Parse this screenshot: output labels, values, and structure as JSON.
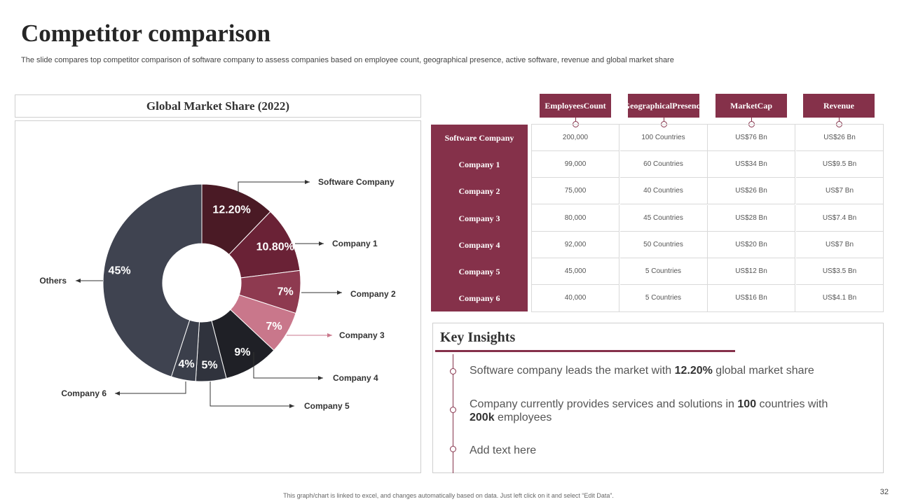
{
  "slide": {
    "title": "Competitor comparison",
    "subtitle": "The slide compares top competitor comparison of software company to assess companies based on employee count, geographical presence, active software, revenue and global market share",
    "footnote": "This graph/chart is linked to excel, and changes automatically based on data. Just left click on it and select “Edit Data”.",
    "page_number": "32"
  },
  "chart_data": {
    "type": "pie",
    "title": "Global Market Share (2022)",
    "categories": [
      "Software Company",
      "Company 1",
      "Company 2",
      "Company 3",
      "Company 4",
      "Company 5",
      "Company 6",
      "Others"
    ],
    "values": [
      12.2,
      10.8,
      7,
      7,
      9,
      5,
      4,
      45
    ],
    "labels": [
      "12.20%",
      "10.80%",
      "7%",
      "7%",
      "9%",
      "5%",
      "4%",
      "45%"
    ],
    "colors": [
      "#4a1a25",
      "#6a2236",
      "#8e3a50",
      "#c9778b",
      "#1f2026",
      "#30333d",
      "#3b3f4b",
      "#3f4350"
    ],
    "donut": true
  },
  "table": {
    "columns": [
      {
        "label": "Employees Count",
        "lines": [
          "Employees",
          "Count"
        ]
      },
      {
        "label": "Geographical Presence",
        "lines": [
          "Geographical",
          "Presence"
        ]
      },
      {
        "label": "Market Cap",
        "lines": [
          "Market",
          "Cap"
        ]
      },
      {
        "label": "Revenue",
        "lines": [
          "Revenue"
        ]
      }
    ],
    "rows": [
      {
        "company": "Software Company",
        "values": [
          "200,000",
          "100 Countries",
          "US$76 Bn",
          "US$26 Bn"
        ]
      },
      {
        "company": "Company 1",
        "values": [
          "99,000",
          "60 Countries",
          "US$34 Bn",
          "US$9.5 Bn"
        ]
      },
      {
        "company": "Company 2",
        "values": [
          "75,000",
          "40 Countries",
          "US$26 Bn",
          "US$7 Bn"
        ]
      },
      {
        "company": "Company 3",
        "values": [
          "80,000",
          "45 Countries",
          "US$28 Bn",
          "US$7.4 Bn"
        ]
      },
      {
        "company": "Company 4",
        "values": [
          "92,000",
          "50 Countries",
          "US$20 Bn",
          "US$7 Bn"
        ]
      },
      {
        "company": "Company 5",
        "values": [
          "45,000",
          "5 Countries",
          "US$12 Bn",
          "US$3.5 Bn"
        ]
      },
      {
        "company": "Company 6",
        "values": [
          "40,000",
          "5 Countries",
          "US$16 Bn",
          "US$4.1 Bn"
        ]
      }
    ]
  },
  "insights": {
    "title": "Key Insights",
    "items": [
      {
        "parts": [
          {
            "t": "Software company leads the market with ",
            "b": false
          },
          {
            "t": "12.20%",
            "b": true
          },
          {
            "t": " global market share",
            "b": false
          }
        ]
      },
      {
        "parts": [
          {
            "t": "Company currently provides services and solutions in ",
            "b": false
          },
          {
            "t": "100",
            "b": true
          },
          {
            "t": " countries with ",
            "b": false
          },
          {
            "t": "200k",
            "b": true
          },
          {
            "t": " employees",
            "b": false
          }
        ]
      },
      {
        "parts": [
          {
            "t": "Add text here",
            "b": false
          }
        ]
      }
    ]
  }
}
